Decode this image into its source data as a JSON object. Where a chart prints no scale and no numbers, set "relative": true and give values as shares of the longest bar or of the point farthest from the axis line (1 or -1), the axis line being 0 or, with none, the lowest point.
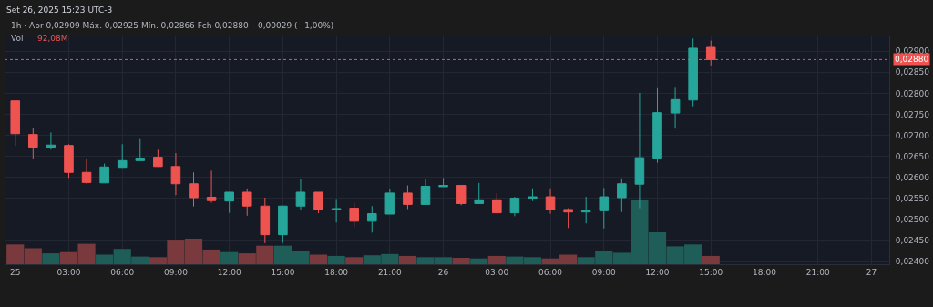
{
  "chart_data": [
    {
      "type": "candlestick",
      "title": "Set 26, 2025 15:23 UTC-3",
      "subtitle": "1h · Abr 0,02909 Máx. 0,02925 Mín. 0,02866 Fch 0,02880 −0,00029 (−1,00%)",
      "x": [
        "2025-09-25T00:00",
        "2025-09-25T01:00",
        "2025-09-25T02:00",
        "2025-09-25T03:00",
        "2025-09-25T04:00",
        "2025-09-25T05:00",
        "2025-09-25T06:00",
        "2025-09-25T07:00",
        "2025-09-25T08:00",
        "2025-09-25T09:00",
        "2025-09-25T10:00",
        "2025-09-25T11:00",
        "2025-09-25T12:00",
        "2025-09-25T13:00",
        "2025-09-25T14:00",
        "2025-09-25T15:00",
        "2025-09-25T16:00",
        "2025-09-25T17:00",
        "2025-09-25T18:00",
        "2025-09-25T19:00",
        "2025-09-25T20:00",
        "2025-09-25T21:00",
        "2025-09-25T22:00",
        "2025-09-25T23:00",
        "2025-09-26T00:00",
        "2025-09-26T01:00",
        "2025-09-26T02:00",
        "2025-09-26T03:00",
        "2025-09-26T04:00",
        "2025-09-26T05:00",
        "2025-09-26T06:00",
        "2025-09-26T07:00",
        "2025-09-26T08:00",
        "2025-09-26T09:00",
        "2025-09-26T10:00",
        "2025-09-26T11:00",
        "2025-09-26T12:00",
        "2025-09-26T13:00",
        "2025-09-26T14:00",
        "2025-09-26T15:00"
      ],
      "ohlc": [
        [
          0.02782,
          0.02782,
          0.02675,
          0.02704
        ],
        [
          0.02702,
          0.02718,
          0.02643,
          0.02672
        ],
        [
          0.02672,
          0.02707,
          0.02666,
          0.02677
        ],
        [
          0.02676,
          0.02679,
          0.02599,
          0.02612
        ],
        [
          0.02612,
          0.02645,
          0.02585,
          0.02588
        ],
        [
          0.02587,
          0.02633,
          0.02587,
          0.02625
        ],
        [
          0.02624,
          0.02679,
          0.02623,
          0.0264
        ],
        [
          0.0264,
          0.02691,
          0.0264,
          0.02646
        ],
        [
          0.02648,
          0.02666,
          0.02625,
          0.02626
        ],
        [
          0.02626,
          0.02658,
          0.02558,
          0.02585
        ],
        [
          0.02585,
          0.02612,
          0.02531,
          0.02552
        ],
        [
          0.02553,
          0.02616,
          0.0254,
          0.02545
        ],
        [
          0.02544,
          0.02565,
          0.02516,
          0.02565
        ],
        [
          0.02565,
          0.02574,
          0.02509,
          0.02532
        ],
        [
          0.02532,
          0.02552,
          0.02444,
          0.02464
        ],
        [
          0.02464,
          0.02533,
          0.02445,
          0.02532
        ],
        [
          0.02532,
          0.02596,
          0.02523,
          0.02565
        ],
        [
          0.02565,
          0.02565,
          0.02515,
          0.02523
        ],
        [
          0.02523,
          0.02549,
          0.02493,
          0.02526
        ],
        [
          0.02527,
          0.0254,
          0.02482,
          0.02496
        ],
        [
          0.02496,
          0.02532,
          0.02469,
          0.02514
        ],
        [
          0.02513,
          0.02573,
          0.02513,
          0.02563
        ],
        [
          0.02563,
          0.02581,
          0.02525,
          0.02536
        ],
        [
          0.02536,
          0.02596,
          0.02536,
          0.02579
        ],
        [
          0.02578,
          0.02599,
          0.02578,
          0.02581
        ],
        [
          0.02581,
          0.02581,
          0.02534,
          0.02538
        ],
        [
          0.02538,
          0.02587,
          0.02538,
          0.02547
        ],
        [
          0.02547,
          0.02563,
          0.02515,
          0.02516
        ],
        [
          0.02516,
          0.02554,
          0.02508,
          0.02551
        ],
        [
          0.02551,
          0.02574,
          0.02544,
          0.02554
        ],
        [
          0.02554,
          0.02574,
          0.02514,
          0.02523
        ],
        [
          0.02524,
          0.02527,
          0.0248,
          0.02518
        ],
        [
          0.02518,
          0.02554,
          0.02491,
          0.02521
        ],
        [
          0.02521,
          0.02575,
          0.02479,
          0.02554
        ],
        [
          0.02552,
          0.02598,
          0.02518,
          0.02585
        ],
        [
          0.02584,
          0.02801,
          0.02527,
          0.02647
        ],
        [
          0.02646,
          0.02812,
          0.02635,
          0.02754
        ],
        [
          0.02753,
          0.02813,
          0.02716,
          0.02785
        ],
        [
          0.02784,
          0.0293,
          0.02769,
          0.02907
        ],
        [
          0.02909,
          0.02925,
          0.02866,
          0.0288
        ]
      ],
      "colors": [
        "#ef5350",
        "#ef5350",
        "#26a69a",
        "#ef5350",
        "#ef5350",
        "#26a69a",
        "#26a69a",
        "#26a69a",
        "#ef5350",
        "#ef5350",
        "#ef5350",
        "#ef5350",
        "#26a69a",
        "#ef5350",
        "#ef5350",
        "#26a69a",
        "#26a69a",
        "#ef5350",
        "#26a69a",
        "#ef5350",
        "#26a69a",
        "#26a69a",
        "#ef5350",
        "#26a69a",
        "#26a69a",
        "#ef5350",
        "#26a69a",
        "#ef5350",
        "#26a69a",
        "#26a69a",
        "#ef5350",
        "#ef5350",
        "#26a69a",
        "#26a69a",
        "#26a69a",
        "#26a69a",
        "#26a69a",
        "#26a69a",
        "#26a69a",
        "#ef5350"
      ],
      "xlim": [
        "2025-09-24T23:24",
        "2025-09-27T01:00"
      ],
      "xticks": [
        {
          "value": "2025-09-25T00:00",
          "label": "25"
        },
        {
          "value": "2025-09-25T03:00",
          "label": "03:00"
        },
        {
          "value": "2025-09-25T06:00",
          "label": "06:00"
        },
        {
          "value": "2025-09-25T09:00",
          "label": "09:00"
        },
        {
          "value": "2025-09-25T12:00",
          "label": "12:00"
        },
        {
          "value": "2025-09-25T15:00",
          "label": "15:00"
        },
        {
          "value": "2025-09-25T18:00",
          "label": "18:00"
        },
        {
          "value": "2025-09-25T21:00",
          "label": "21:00"
        },
        {
          "value": "2025-09-26T00:00",
          "label": "26"
        },
        {
          "value": "2025-09-26T03:00",
          "label": "03:00"
        },
        {
          "value": "2025-09-26T06:00",
          "label": "06:00"
        },
        {
          "value": "2025-09-26T09:00",
          "label": "09:00"
        },
        {
          "value": "2025-09-26T12:00",
          "label": "12:00"
        },
        {
          "value": "2025-09-26T15:00",
          "label": "15:00"
        },
        {
          "value": "2025-09-26T18:00",
          "label": "18:00"
        },
        {
          "value": "2025-09-26T21:00",
          "label": "21:00"
        },
        {
          "value": "2025-09-27T00:00",
          "label": "27"
        }
      ],
      "ylim": [
        0.02394,
        0.02935
      ],
      "yticks": [
        {
          "value": 0.024,
          "label": "0,02400"
        },
        {
          "value": 0.0245,
          "label": "0,02450"
        },
        {
          "value": 0.025,
          "label": "0,02500"
        },
        {
          "value": 0.0255,
          "label": "0,02550"
        },
        {
          "value": 0.026,
          "label": "0,02600"
        },
        {
          "value": 0.0265,
          "label": "0,02650"
        },
        {
          "value": 0.027,
          "label": "0,02700"
        },
        {
          "value": 0.0275,
          "label": "0,02750"
        },
        {
          "value": 0.028,
          "label": "0,02800"
        },
        {
          "value": 0.0285,
          "label": "0,02850"
        },
        {
          "value": 0.029,
          "label": "0,02900"
        }
      ],
      "ref_lines": [
        {
          "axis": "y",
          "value": 0.0288,
          "label": "0,02880",
          "color": "#ef5350",
          "line_style": "dotted"
        }
      ],
      "grid": true
    },
    {
      "type": "bar",
      "title": "Vol",
      "annotations": [
        "92,08M"
      ],
      "relative": true,
      "x": [
        "2025-09-25T00:00",
        "2025-09-25T01:00",
        "2025-09-25T02:00",
        "2025-09-25T03:00",
        "2025-09-25T04:00",
        "2025-09-25T05:00",
        "2025-09-25T06:00",
        "2025-09-25T07:00",
        "2025-09-25T08:00",
        "2025-09-25T09:00",
        "2025-09-25T10:00",
        "2025-09-25T11:00",
        "2025-09-25T12:00",
        "2025-09-25T13:00",
        "2025-09-25T14:00",
        "2025-09-25T15:00",
        "2025-09-25T16:00",
        "2025-09-25T17:00",
        "2025-09-25T18:00",
        "2025-09-25T19:00",
        "2025-09-25T20:00",
        "2025-09-25T21:00",
        "2025-09-25T22:00",
        "2025-09-25T23:00",
        "2025-09-26T00:00",
        "2025-09-26T01:00",
        "2025-09-26T02:00",
        "2025-09-26T03:00",
        "2025-09-26T04:00",
        "2025-09-26T05:00",
        "2025-09-26T06:00",
        "2025-09-26T07:00",
        "2025-09-26T08:00",
        "2025-09-26T09:00",
        "2025-09-26T10:00",
        "2025-09-26T11:00",
        "2025-09-26T12:00",
        "2025-09-26T13:00",
        "2025-09-26T14:00",
        "2025-09-26T15:00"
      ],
      "xlim": [
        "2025-09-24T23:24",
        "2025-09-27T01:00"
      ],
      "values": [
        0.31,
        0.25,
        0.17,
        0.19,
        0.32,
        0.15,
        0.24,
        0.12,
        0.11,
        0.37,
        0.4,
        0.23,
        0.19,
        0.17,
        0.29,
        0.29,
        0.2,
        0.15,
        0.13,
        0.11,
        0.14,
        0.16,
        0.13,
        0.11,
        0.11,
        0.1,
        0.09,
        0.13,
        0.12,
        0.11,
        0.09,
        0.15,
        0.11,
        0.21,
        0.18,
        1,
        0.5,
        0.28,
        0.31,
        0.13
      ],
      "colors": [
        "#7a3a3d",
        "#7a3a3d",
        "#1f5e58",
        "#7a3a3d",
        "#7a3a3d",
        "#1f5e58",
        "#1f5e58",
        "#1f5e58",
        "#7a3a3d",
        "#7a3a3d",
        "#7a3a3d",
        "#7a3a3d",
        "#1f5e58",
        "#7a3a3d",
        "#7a3a3d",
        "#1f5e58",
        "#1f5e58",
        "#7a3a3d",
        "#1f5e58",
        "#7a3a3d",
        "#1f5e58",
        "#1f5e58",
        "#7a3a3d",
        "#1f5e58",
        "#1f5e58",
        "#7a3a3d",
        "#1f5e58",
        "#7a3a3d",
        "#1f5e58",
        "#1f5e58",
        "#7a3a3d",
        "#7a3a3d",
        "#1f5e58",
        "#1f5e58",
        "#1f5e58",
        "#1f5e58",
        "#1f5e58",
        "#1f5e58",
        "#1f5e58",
        "#7a3a3d"
      ]
    }
  ]
}
